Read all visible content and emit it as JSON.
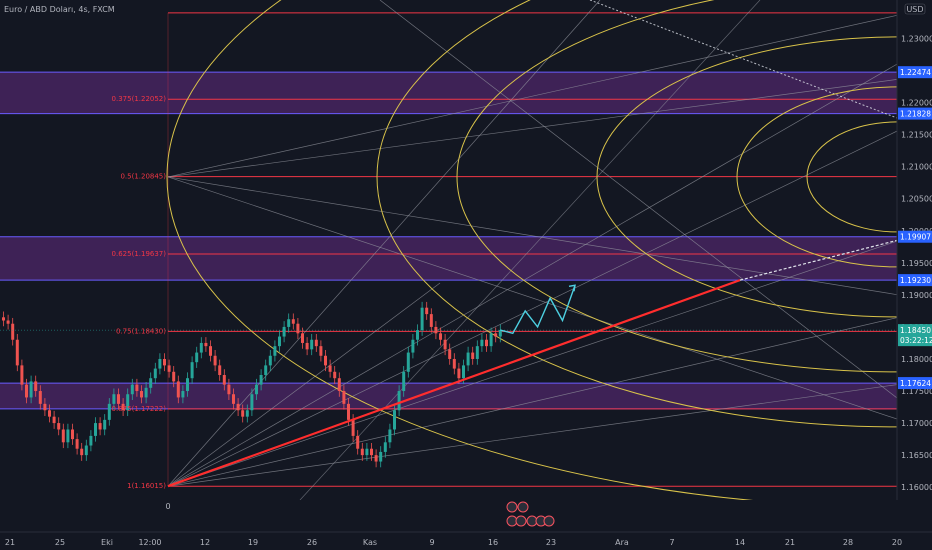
{
  "chart_data": {
    "type": "candlestick",
    "title": "Euro / ABD Doları, 4s, FXCM",
    "currency": "USD",
    "colors": {
      "background": "#131722",
      "bull": "#26a69a",
      "bear": "#ef5350",
      "fib_level": "#f23645",
      "zone_fill": "#5b2a7a",
      "zone_border": "#6a5cff",
      "arc": "#d9c34a",
      "fan": "#9598a1",
      "trend": "#ff2d2d",
      "projection": "#4dd0e1",
      "price_tag": "#2962ff",
      "current_tag": "#26a69a"
    },
    "x_axis": {
      "tick_labels": [
        "21",
        "25",
        "Eki",
        "12:00",
        "12",
        "19",
        "26",
        "Kas",
        "9",
        "16",
        "23",
        "Ara",
        "7",
        "14",
        "21",
        "28",
        "20"
      ]
    },
    "y_axis": {
      "ylim": [
        1.158,
        1.236
      ],
      "tick_labels": [
        "1.23000",
        "1.22500",
        "1.22000",
        "1.21500",
        "1.21000",
        "1.20500",
        "1.20000",
        "1.19500",
        "1.19000",
        "1.18500",
        "1.18000",
        "1.17500",
        "1.17000",
        "1.16500",
        "1.16000"
      ],
      "tick_values": [
        1.23,
        1.225,
        1.22,
        1.215,
        1.21,
        1.205,
        1.2,
        1.195,
        1.19,
        1.185,
        1.18,
        1.175,
        1.17,
        1.165,
        1.16
      ]
    },
    "price_tags": [
      {
        "label": "1.22474",
        "value": 1.22474
      },
      {
        "label": "1.21828",
        "value": 1.21828
      },
      {
        "label": "1.19907",
        "value": 1.19907
      },
      {
        "label": "1.19230",
        "value": 1.1923
      },
      {
        "label": "1.17624",
        "value": 1.17624
      }
    ],
    "current_price": {
      "label": "1.18450",
      "timer": "03:22:12",
      "value": 1.1845
    },
    "fib_levels": [
      {
        "label": "0.375(1.22052)",
        "value": 1.22052
      },
      {
        "label": "0.5(1.20845)",
        "value": 1.20845
      },
      {
        "label": "0.625(1.19637)",
        "value": 1.19637
      },
      {
        "label": "0.75(1.18430)",
        "value": 1.1843
      },
      {
        "label": "0.875(1.17222)",
        "value": 1.17222
      },
      {
        "label": "1(1.16015)",
        "value": 1.16015
      }
    ],
    "fib_top_level": 1.234,
    "fib_zero_label": "0",
    "zones": [
      {
        "top": 1.22474,
        "bottom": 1.21828
      },
      {
        "top": 1.19907,
        "bottom": 1.1923
      },
      {
        "top": 1.17624,
        "bottom": 1.17222
      }
    ],
    "candles_close": [
      1.186,
      1.1855,
      1.183,
      1.179,
      1.176,
      1.174,
      1.1765,
      1.175,
      1.173,
      1.172,
      1.171,
      1.17,
      1.169,
      1.167,
      1.169,
      1.1675,
      1.166,
      1.165,
      1.1665,
      1.168,
      1.17,
      1.169,
      1.1705,
      1.173,
      1.1745,
      1.173,
      1.172,
      1.1745,
      1.176,
      1.175,
      1.174,
      1.1755,
      1.177,
      1.1785,
      1.18,
      1.179,
      1.178,
      1.1765,
      1.174,
      1.175,
      1.177,
      1.1795,
      1.181,
      1.1825,
      1.182,
      1.1805,
      1.179,
      1.1775,
      1.176,
      1.1745,
      1.173,
      1.172,
      1.171,
      1.172,
      1.1745,
      1.176,
      1.1775,
      1.179,
      1.1805,
      1.182,
      1.1835,
      1.185,
      1.1862,
      1.1855,
      1.184,
      1.1825,
      1.1815,
      1.183,
      1.182,
      1.1805,
      1.179,
      1.178,
      1.177,
      1.175,
      1.173,
      1.1705,
      1.168,
      1.166,
      1.165,
      1.166,
      1.165,
      1.164,
      1.1655,
      1.167,
      1.169,
      1.172,
      1.175,
      1.178,
      1.181,
      1.183,
      1.1845,
      1.188,
      1.187,
      1.185,
      1.184,
      1.183,
      1.1815,
      1.18,
      1.1785,
      1.177,
      1.179,
      1.181,
      1.18,
      1.182,
      1.183,
      1.182,
      1.184,
      1.1835,
      1.1845
    ],
    "projection_path": [
      1.1845,
      1.184,
      1.1875,
      1.185,
      1.1895,
      1.186,
      1.1915
    ]
  }
}
